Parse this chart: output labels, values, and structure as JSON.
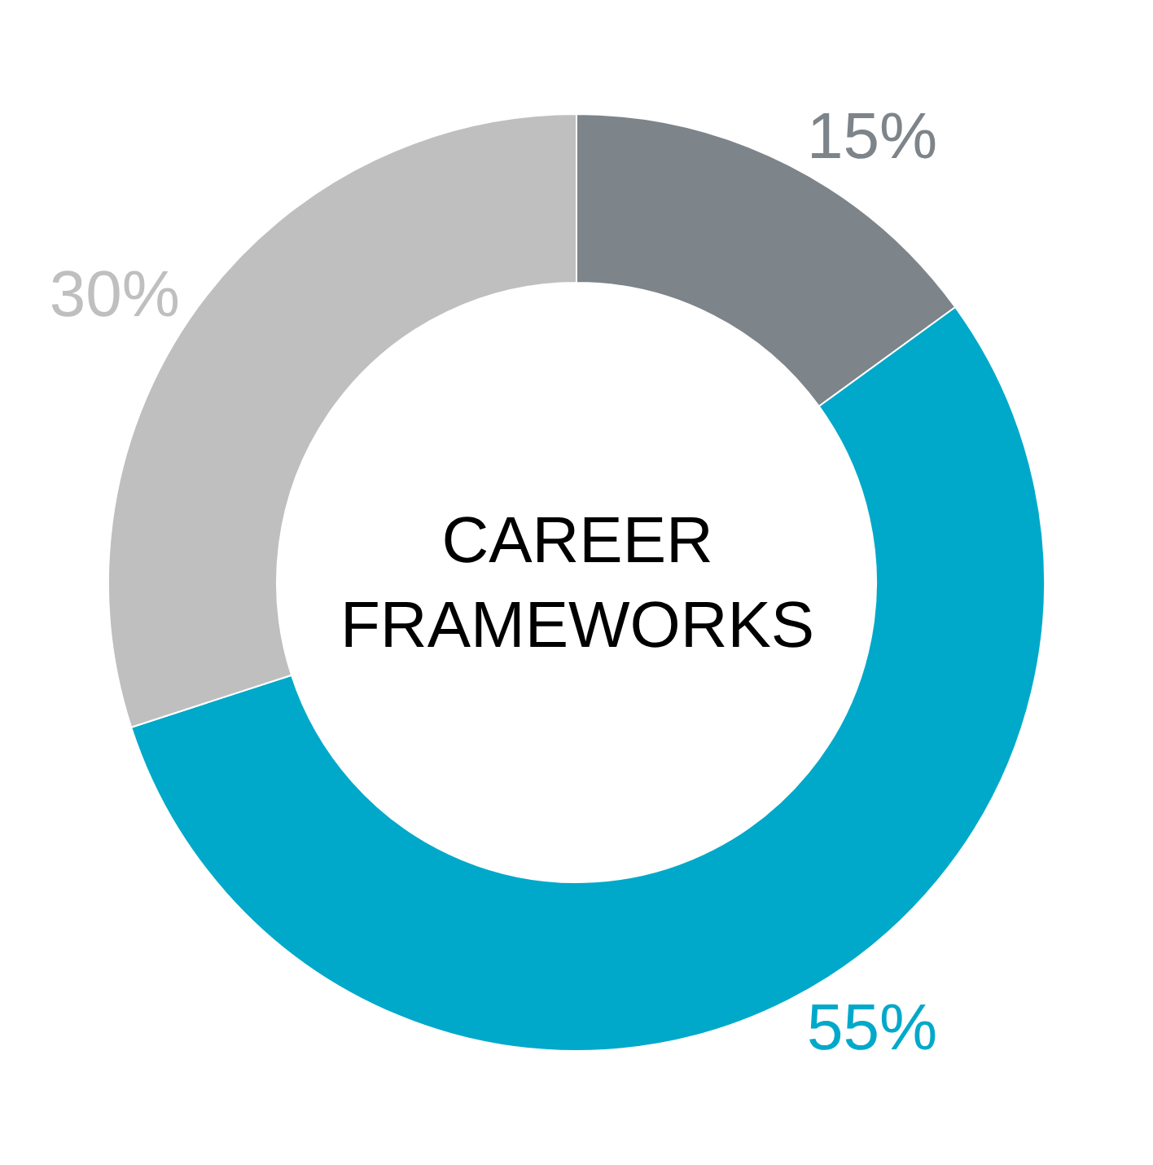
{
  "chart_data": {
    "type": "donut",
    "title": "CAREER FRAMEWORKS",
    "categories": [
      null,
      null,
      null
    ],
    "values": [
      15,
      55,
      30
    ],
    "colors": [
      "#7d848a",
      "#00a9c9",
      "#bfbfbf"
    ],
    "value_labels": [
      "15%",
      "55%",
      "30%"
    ],
    "legend": false
  }
}
